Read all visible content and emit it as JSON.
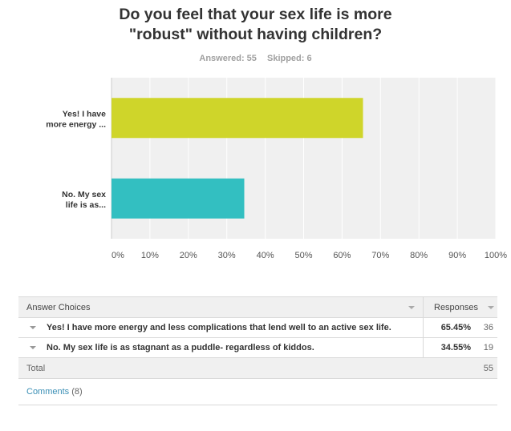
{
  "question": {
    "title_line1": "Do you feel that your sex life is more",
    "title_line2": "\"robust\" without having children?",
    "answered_label": "Answered: 55",
    "skipped_label": "Skipped: 6"
  },
  "chart_data": {
    "type": "bar",
    "orientation": "horizontal",
    "categories_line1": [
      "Yes! I have",
      "No. My sex"
    ],
    "categories_line2": [
      "more energy ...",
      "life is as..."
    ],
    "values": [
      65.45,
      34.55
    ],
    "colors": [
      "#cfd52a",
      "#33bfc1"
    ],
    "xlim": [
      0,
      100
    ],
    "xticks": [
      "0%",
      "10%",
      "20%",
      "30%",
      "40%",
      "50%",
      "60%",
      "70%",
      "80%",
      "90%",
      "100%"
    ],
    "grid": true
  },
  "table": {
    "header_choices": "Answer Choices",
    "header_responses": "Responses",
    "rows": [
      {
        "choice": "Yes! I have more energy and less complications that lend well to an active sex life.",
        "percent": "65.45%",
        "count": "36"
      },
      {
        "choice": "No. My sex life is as stagnant as a puddle- regardless of kiddos.",
        "percent": "34.55%",
        "count": "19"
      }
    ],
    "total_label": "Total",
    "total_value": "55"
  },
  "comments": {
    "label": "Comments",
    "count": "(8)"
  }
}
